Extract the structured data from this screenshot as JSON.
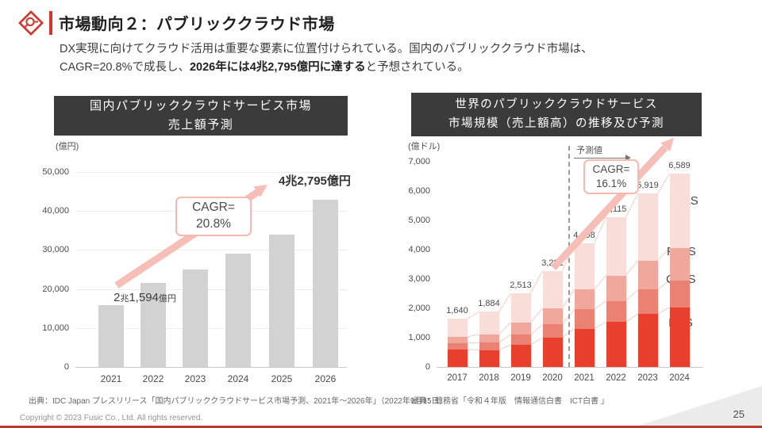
{
  "header": {
    "title": "市場動向２：パブリッククラウド市場",
    "subtitle_line1": "DX実現に向けてクラウド活用は重要な要素に位置付けられている。国内のパブリッククラウド市場は、",
    "subtitle_line2_pre": "CAGR=20.8%で成長し、",
    "subtitle_line2_bold": "2026年には4兆2,795億円に達する",
    "subtitle_line2_post": "と予想されている。"
  },
  "chart_data": [
    {
      "type": "bar",
      "title_line1": "国内パブリッククラウドサービス市場",
      "title_line2": "売上額予測",
      "unit": "(億円)",
      "categories": [
        "2021",
        "2022",
        "2023",
        "2024",
        "2025",
        "2026"
      ],
      "values": [
        15900,
        21594,
        25000,
        29000,
        34000,
        42795
      ],
      "ylim": [
        0,
        50000
      ],
      "ytick_step": 10000,
      "bar_color": "#d2d2d2",
      "grid": true,
      "annotations": {
        "cagr_line1": "CAGR=",
        "cagr_line2": "20.8%",
        "label_2022": {
          "n1": "2",
          "u1": "兆",
          "n2": "1,594",
          "u2": "億円"
        },
        "label_2026": "4兆2,795億円"
      },
      "source": "出典：IDC Japan プレスリリース「国内パブリッククラウドサービス市場予測、2021年～2026年」（2022年9月15日）"
    },
    {
      "type": "stacked-bar",
      "title_line1": "世界のパブリッククラウドサービス",
      "title_line2": "市場規模（売上額高）の推移及び予測",
      "unit": "(億ドル)",
      "categories": [
        "2017",
        "2018",
        "2019",
        "2020",
        "2021",
        "2022",
        "2023",
        "2024"
      ],
      "series": [
        {
          "name": "IaaS",
          "color": "#e8402c",
          "values": [
            600,
            580,
            760,
            1000,
            1310,
            1530,
            1810,
            2030
          ]
        },
        {
          "name": "CaaS",
          "color": "#ea8173",
          "values": [
            220,
            250,
            340,
            450,
            660,
            720,
            830,
            920
          ]
        },
        {
          "name": "PaaS",
          "color": "#f0a89d",
          "values": [
            210,
            280,
            420,
            550,
            670,
            870,
            990,
            1100
          ]
        },
        {
          "name": "SaaS",
          "color": "#f8ddd9",
          "values": [
            610,
            774,
            993,
            1281,
            1568,
            1995,
            2289,
            2539
          ]
        }
      ],
      "totals": [
        1640,
        1884,
        2513,
        3281,
        4208,
        5115,
        5919,
        6589
      ],
      "ylim": [
        0,
        7000
      ],
      "ytick_step": 1000,
      "grid": false,
      "forecast_label": "予測値",
      "forecast_from": "2021",
      "annotations": {
        "cagr_line1": "CAGR=",
        "cagr_line2": "16.1%"
      },
      "source": "出典：総務省「令和４年版　情報通信白書　ICT白書 」"
    }
  ],
  "footer": {
    "copyright": "Copyright © 2023 Fusic Co., Ltd. All rights reserved.",
    "page": "25"
  },
  "colors": {
    "accent_red": "#d7342b",
    "arrow_pink": "#f6beb7",
    "title_box_bg": "#3b3b3b",
    "bottom_bar_red": "#c0392b",
    "domestic_bar_gray": "#d2d2d2"
  }
}
